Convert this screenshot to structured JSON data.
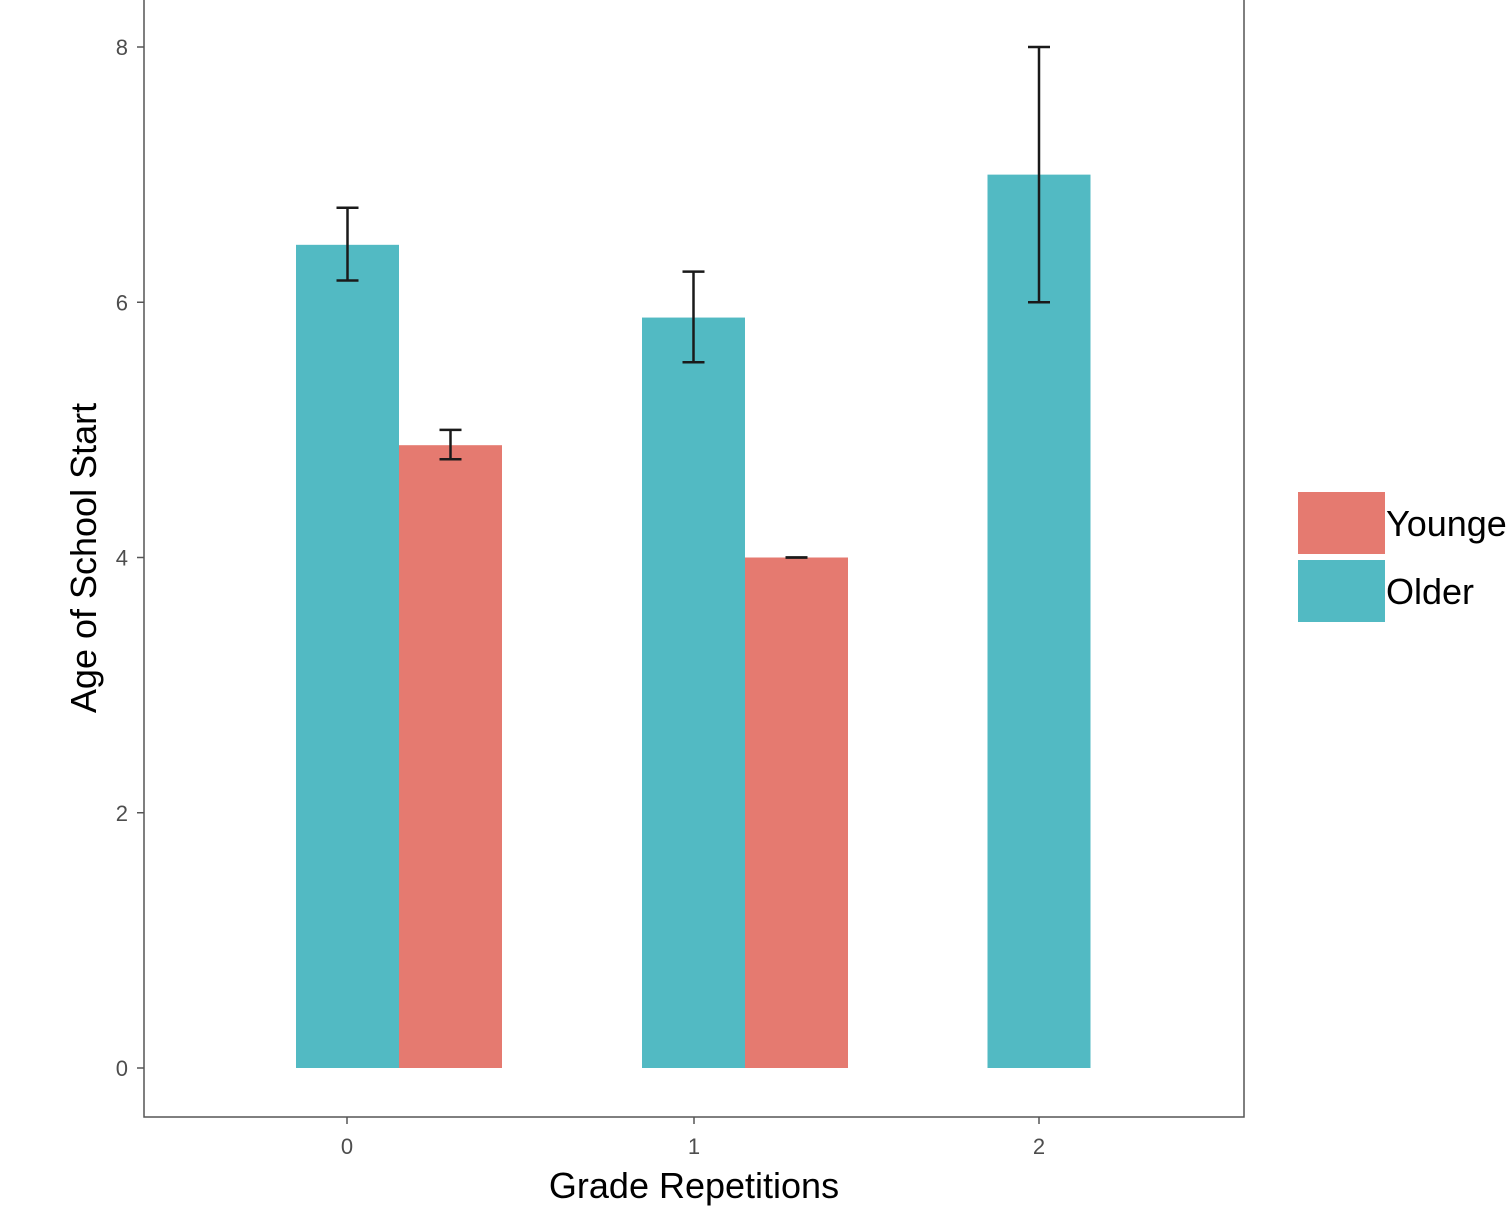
{
  "chart_data": {
    "type": "bar",
    "categories": [
      "0",
      "1",
      "2"
    ],
    "series": [
      {
        "name": "Older",
        "color": "#52BAC3",
        "values": [
          6.45,
          5.88,
          7.0
        ],
        "error_low": [
          6.17,
          5.53,
          6.0
        ],
        "error_high": [
          6.74,
          6.24,
          8.0
        ]
      },
      {
        "name": "Younger",
        "color": "#E57A70",
        "values": [
          4.88,
          4.0,
          null
        ],
        "error_low": [
          4.77,
          4.0,
          null
        ],
        "error_high": [
          5.0,
          4.0,
          null
        ]
      }
    ],
    "xlabel": "Grade Repetitions",
    "ylabel": "Age of School Start",
    "yticks": [
      "0",
      "2",
      "4",
      "6",
      "8"
    ],
    "ylim": [
      -0.2,
      8.2
    ],
    "grid": false,
    "legend": {
      "position": "right",
      "entries": [
        "Younger",
        "Older"
      ]
    }
  }
}
